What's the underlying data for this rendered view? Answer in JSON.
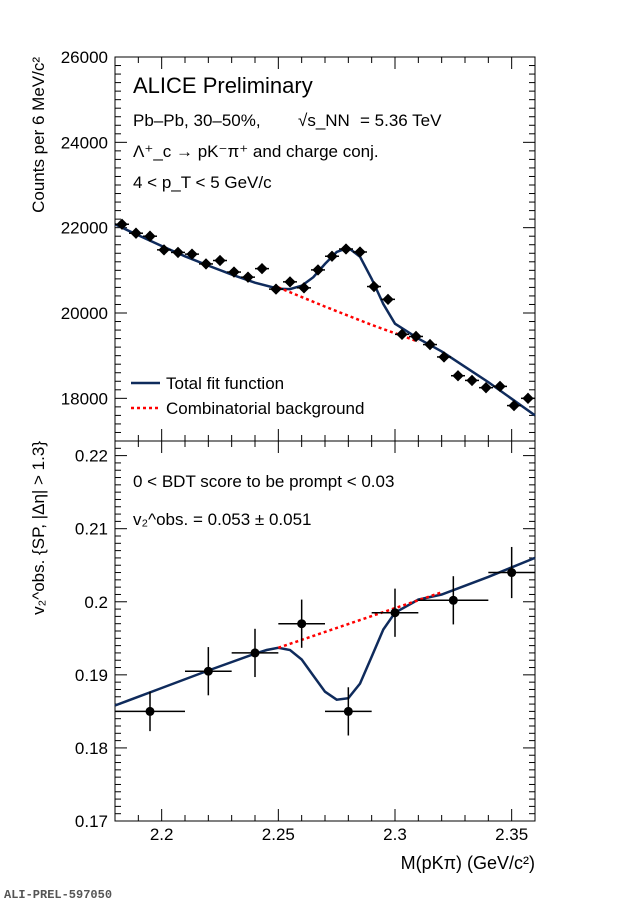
{
  "colors": {
    "fit": "#0f2b5c",
    "background": "#ff0000",
    "points": "#000000"
  },
  "chart_data": [
    {
      "type": "scatter",
      "panel": "top",
      "ylabel": "Counts per 6 MeV/c²",
      "ylim": [
        17000,
        26000
      ],
      "xlim": [
        2.18,
        2.36
      ],
      "y_ticks": [
        "18000",
        "20000",
        "22000",
        "24000",
        "26000"
      ],
      "annotations": {
        "title": "ALICE Preliminary",
        "system": "Pb–Pb, 30–50%,",
        "energy": "= 5.36 TeV",
        "energy_label": "√s_NN",
        "decay": "Λ⁺_c → pK⁻π⁺ and charge conj.",
        "pt_range": "4 < p_T < 5 GeV/c"
      },
      "legend": {
        "placement": "bottom-left",
        "entries": [
          "Total fit function",
          "Combinatorial background"
        ]
      },
      "series": [
        {
          "name": "Data",
          "style": "points",
          "x": [
            2.183,
            2.189,
            2.195,
            2.201,
            2.207,
            2.213,
            2.219,
            2.225,
            2.231,
            2.237,
            2.243,
            2.249,
            2.255,
            2.261,
            2.267,
            2.273,
            2.279,
            2.285,
            2.291,
            2.297,
            2.303,
            2.309,
            2.315,
            2.321,
            2.327,
            2.333,
            2.339,
            2.345,
            2.351,
            2.357
          ],
          "y": [
            22080,
            21870,
            21800,
            21480,
            21420,
            21380,
            21150,
            21230,
            20960,
            20840,
            21040,
            20560,
            20730,
            20590,
            21010,
            21330,
            21500,
            21430,
            20620,
            20320,
            19500,
            19450,
            19260,
            18970,
            18530,
            18420,
            18250,
            18280,
            17830,
            18000
          ],
          "yerr": 115,
          "xerr": 0.003
        },
        {
          "name": "Total fit function",
          "style": "line",
          "x": [
            2.18,
            2.19,
            2.2,
            2.21,
            2.22,
            2.23,
            2.24,
            2.25,
            2.255,
            2.26,
            2.265,
            2.27,
            2.275,
            2.28,
            2.285,
            2.29,
            2.295,
            2.3,
            2.31,
            2.32,
            2.33,
            2.34,
            2.35,
            2.36
          ],
          "y": [
            22080,
            21820,
            21570,
            21330,
            21110,
            20900,
            20710,
            20570,
            20560,
            20640,
            20840,
            21150,
            21430,
            21530,
            21320,
            20800,
            20210,
            19750,
            19400,
            19100,
            18740,
            18380,
            17990,
            17600
          ]
        },
        {
          "name": "Combinatorial background",
          "style": "dashed",
          "x": [
            2.25,
            2.27,
            2.29,
            2.31
          ],
          "y": [
            20600,
            20150,
            19720,
            19330
          ]
        }
      ]
    },
    {
      "type": "scatter",
      "panel": "bottom",
      "xlabel": "M(pKπ) (GeV/c²)",
      "ylabel": "v₂^obs. {SP, |Δη| > 1.3}",
      "ylim": [
        0.17,
        0.222
      ],
      "xlim": [
        2.18,
        2.36
      ],
      "x_ticks": [
        "2.2",
        "2.25",
        "2.3",
        "2.35"
      ],
      "y_ticks": [
        "0.17",
        "0.18",
        "0.19",
        "0.2",
        "0.21",
        "0.22"
      ],
      "annotations": {
        "bdt": "0 < BDT score to be prompt < 0.03",
        "v2value": "= 0.053 ± 0.051",
        "v2label": "v₂^obs."
      },
      "series": [
        {
          "name": "Data",
          "style": "points",
          "x": [
            2.195,
            2.22,
            2.24,
            2.26,
            2.28,
            2.3,
            2.325,
            2.35
          ],
          "y": [
            0.185,
            0.1905,
            0.193,
            0.197,
            0.185,
            0.1985,
            0.2002,
            0.204
          ],
          "xerr": [
            0.015,
            0.01,
            0.01,
            0.01,
            0.01,
            0.01,
            0.015,
            0.01
          ],
          "yerr": [
            0.0027,
            0.0033,
            0.0033,
            0.0033,
            0.0033,
            0.0033,
            0.0033,
            0.0035
          ]
        },
        {
          "name": "Total fit function",
          "style": "line",
          "x": [
            2.18,
            2.2,
            2.22,
            2.24,
            2.245,
            2.25,
            2.255,
            2.26,
            2.265,
            2.27,
            2.275,
            2.28,
            2.285,
            2.29,
            2.295,
            2.3,
            2.31,
            2.32,
            2.34,
            2.36
          ],
          "y": [
            0.1858,
            0.1882,
            0.1906,
            0.1929,
            0.1934,
            0.1937,
            0.1934,
            0.1921,
            0.1899,
            0.1877,
            0.1866,
            0.1868,
            0.1888,
            0.1925,
            0.1962,
            0.1985,
            0.2003,
            0.201,
            0.2034,
            0.206
          ]
        },
        {
          "name": "Combinatorial background",
          "style": "dashed",
          "x": [
            2.25,
            2.32
          ],
          "y": [
            0.1937,
            0.2013
          ]
        }
      ]
    }
  ],
  "footer": {
    "label": "ALI-PREL-597050"
  }
}
